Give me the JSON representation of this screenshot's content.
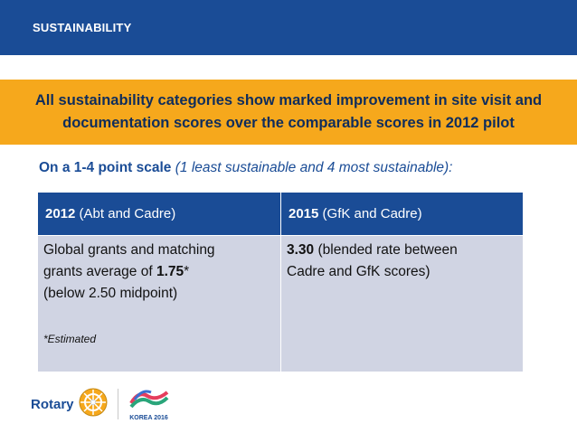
{
  "header": {
    "title": "SUSTAINABILITY"
  },
  "banner": {
    "line1": "All sustainability categories show marked improvement in site visit and",
    "line2": "documentation scores over the comparable scores in 2012 pilot"
  },
  "scale": {
    "bold_text": "On a 1-4 point scale",
    "italic_text": "(1 least sustainable and 4 most sustainable):"
  },
  "table": {
    "headers": [
      {
        "year": "2012",
        "source": "(Abt and Cadre)"
      },
      {
        "year": "2015",
        "source": "(GfK and Cadre)"
      }
    ],
    "cells": [
      {
        "line1": "Global grants and matching",
        "line2_pre": "grants average of ",
        "line2_value": "1.75",
        "line2_post": "*",
        "line3": "(below 2.50 midpoint)",
        "note": "*Estimated"
      },
      {
        "value": "3.30",
        "line1_post": " (blended rate between",
        "line2": "Cadre and GfK scores)"
      }
    ]
  },
  "footer": {
    "logo_text": "Rotary",
    "event_text": "KOREA 2016"
  },
  "colors": {
    "header_blue": "#1a4c96",
    "banner_orange": "#f6a81c",
    "cell_gray": "#d0d4e3"
  }
}
